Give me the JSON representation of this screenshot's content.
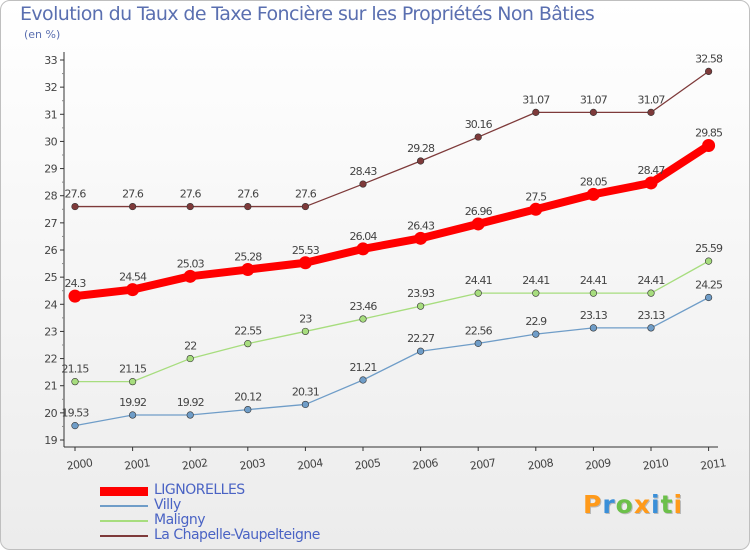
{
  "chart_data": {
    "type": "line",
    "title": "Evolution du Taux de Taxe Foncière sur les Propriétés Non Bâties",
    "subtitle": "(en %)",
    "categories": [
      "2000",
      "2001",
      "2002",
      "2003",
      "2004",
      "2005",
      "2006",
      "2007",
      "2008",
      "2009",
      "2010",
      "2011"
    ],
    "ylim": [
      19,
      33
    ],
    "yticks": [
      19,
      20,
      21,
      22,
      23,
      24,
      25,
      26,
      27,
      28,
      29,
      30,
      31,
      32,
      33
    ],
    "grid": false,
    "legend_position": "bottom-left",
    "series": [
      {
        "name": "LIGNORELLES",
        "color": "#ff0000",
        "values": [
          24.3,
          24.54,
          25.03,
          25.28,
          25.53,
          26.04,
          26.43,
          26.96,
          27.5,
          28.05,
          28.47,
          29.85
        ],
        "labels": [
          "24.3",
          "24.54",
          "25.03",
          "25.28",
          "25.53",
          "26.04",
          "26.43",
          "26.96",
          "27.5",
          "28.05",
          "28.47",
          "29.85"
        ]
      },
      {
        "name": "Villy",
        "color": "#6f9dc8",
        "values": [
          19.53,
          19.92,
          19.92,
          20.12,
          20.31,
          21.21,
          22.27,
          22.56,
          22.9,
          23.13,
          23.13,
          24.25
        ],
        "labels": [
          "19.53",
          "19.92",
          "19.92",
          "20.12",
          "20.31",
          "21.21",
          "22.27",
          "22.56",
          "22.9",
          "23.13",
          "23.13",
          "24.25"
        ]
      },
      {
        "name": "Maligny",
        "color": "#a7dd7e",
        "values": [
          21.15,
          21.15,
          22,
          22.55,
          23,
          23.46,
          23.93,
          24.41,
          24.41,
          24.41,
          24.41,
          25.59
        ],
        "labels": [
          "21.15",
          "21.15",
          "22",
          "22.55",
          "23",
          "23.46",
          "23.93",
          "24.41",
          "24.41",
          "24.41",
          "24.41",
          "25.59"
        ]
      },
      {
        "name": "La Chapelle-Vaupelteigne",
        "color": "#7e3a3a",
        "values": [
          27.6,
          27.6,
          27.6,
          27.6,
          27.6,
          28.43,
          29.28,
          30.16,
          31.07,
          31.07,
          31.07,
          32.58
        ],
        "labels": [
          "27.6",
          "27.6",
          "27.6",
          "27.6",
          "27.6",
          "28.43",
          "29.28",
          "30.16",
          "31.07",
          "31.07",
          "31.07",
          "32.58"
        ]
      }
    ]
  },
  "legend": {
    "items": [
      {
        "label": "LIGNORELLES",
        "color": "#ff0000"
      },
      {
        "label": "Villy",
        "color": "#6f9dc8"
      },
      {
        "label": "Maligny",
        "color": "#a7dd7e"
      },
      {
        "label": "La Chapelle-Vaupelteigne",
        "color": "#7e3a3a"
      }
    ]
  },
  "brand": {
    "text": "Proxiti",
    "letters": [
      "P",
      "r",
      "o",
      "x",
      "i",
      "t",
      "i"
    ],
    "colors": [
      "#ff9a1a",
      "#3a8fd8",
      "#6cc04a",
      "#ff9a1a",
      "#3a8fd8",
      "#6cc04a",
      "#ff9a1a"
    ]
  }
}
